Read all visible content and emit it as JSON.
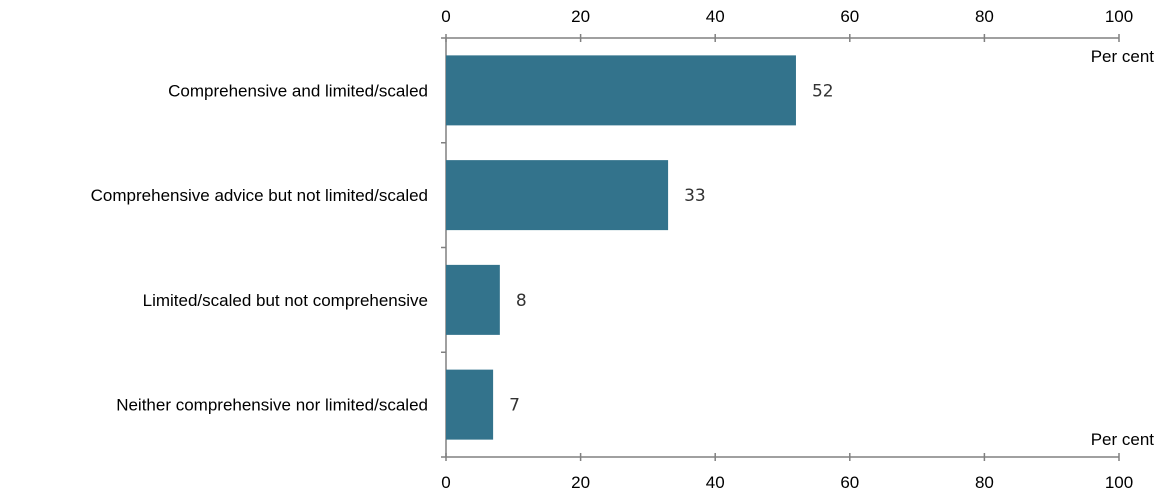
{
  "chart_data": {
    "type": "bar",
    "orientation": "horizontal",
    "categories": [
      "Comprehensive and limited/scaled",
      "Comprehensive advice but not limited/scaled",
      "Limited/scaled but not comprehensive",
      "Neither comprehensive nor limited/scaled"
    ],
    "values": [
      52,
      33,
      8,
      7
    ],
    "data_labels": [
      "52",
      "33",
      "8",
      "7"
    ],
    "xlim": [
      0,
      100
    ],
    "x_ticks": [
      0,
      20,
      40,
      60,
      80,
      100
    ],
    "unit_label_top": "Per cent",
    "unit_label_bottom": "Per cent",
    "bar_color": "#33738C",
    "grid": false,
    "legend": "none"
  }
}
